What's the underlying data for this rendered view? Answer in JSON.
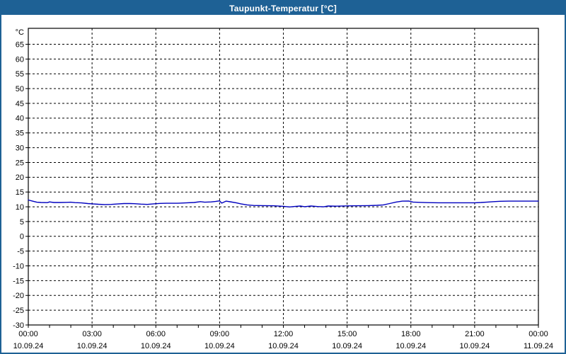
{
  "window": {
    "title": "Taupunkt-Temperatur [°C]"
  },
  "colors": {
    "title_bar": "#1e6195",
    "window_border": "#1e6195",
    "background": "#ffffff",
    "grid": "#000000",
    "axis": "#000000",
    "text": "#000000",
    "line": "#0000bf"
  },
  "chart_data": {
    "type": "line",
    "title": "Taupunkt-Temperatur [°C]",
    "ylabel": "°C",
    "xlabel": "",
    "grid": true,
    "legend": "none",
    "ylim": [
      -30,
      70.4
    ],
    "xlim_hours": [
      0,
      24
    ],
    "y_ticks": [
      65,
      60,
      55,
      50,
      45,
      40,
      35,
      30,
      25,
      20,
      15,
      10,
      5,
      0,
      -5,
      -10,
      -15,
      -20,
      -25,
      -30
    ],
    "x_gridline_hours": [
      3,
      6,
      9,
      12,
      15,
      18,
      21
    ],
    "x_minor_tick_hours_step": 1,
    "x_ticks": [
      {
        "hour": 0,
        "time": "00:00",
        "date": "10.09.24"
      },
      {
        "hour": 3,
        "time": "03:00",
        "date": "10.09.24"
      },
      {
        "hour": 6,
        "time": "06:00",
        "date": "10.09.24"
      },
      {
        "hour": 9,
        "time": "09:00",
        "date": "10.09.24"
      },
      {
        "hour": 12,
        "time": "12:00",
        "date": "10.09.24"
      },
      {
        "hour": 15,
        "time": "15:00",
        "date": "10.09.24"
      },
      {
        "hour": 18,
        "time": "18:00",
        "date": "10.09.24"
      },
      {
        "hour": 21,
        "time": "21:00",
        "date": "10.09.24"
      },
      {
        "hour": 24,
        "time": "00:00",
        "date": "11.09.24"
      }
    ],
    "series": [
      {
        "name": "Taupunkt-Temperatur",
        "color": "#0000bf",
        "points": [
          [
            0.0,
            12.3
          ],
          [
            0.2,
            11.9
          ],
          [
            0.4,
            11.55
          ],
          [
            0.6,
            11.45
          ],
          [
            0.9,
            11.4
          ],
          [
            1.0,
            11.65
          ],
          [
            1.2,
            11.45
          ],
          [
            1.5,
            11.45
          ],
          [
            1.8,
            11.5
          ],
          [
            2.0,
            11.55
          ],
          [
            2.2,
            11.4
          ],
          [
            2.5,
            11.3
          ],
          [
            2.8,
            11.1
          ],
          [
            3.0,
            11.0
          ],
          [
            3.3,
            10.85
          ],
          [
            3.6,
            10.75
          ],
          [
            3.9,
            10.8
          ],
          [
            4.2,
            10.95
          ],
          [
            4.5,
            11.1
          ],
          [
            4.8,
            11.1
          ],
          [
            5.0,
            11.05
          ],
          [
            5.3,
            10.9
          ],
          [
            5.6,
            10.8
          ],
          [
            5.9,
            11.0
          ],
          [
            6.2,
            11.15
          ],
          [
            6.5,
            11.2
          ],
          [
            7.0,
            11.2
          ],
          [
            7.4,
            11.3
          ],
          [
            7.8,
            11.45
          ],
          [
            8.1,
            11.75
          ],
          [
            8.3,
            11.55
          ],
          [
            8.6,
            11.65
          ],
          [
            8.8,
            11.8
          ],
          [
            9.0,
            12.0
          ],
          [
            9.1,
            11.25
          ],
          [
            9.3,
            11.9
          ],
          [
            9.5,
            11.7
          ],
          [
            9.8,
            11.3
          ],
          [
            10.0,
            11.0
          ],
          [
            10.3,
            10.65
          ],
          [
            10.6,
            10.45
          ],
          [
            11.0,
            10.4
          ],
          [
            11.5,
            10.35
          ],
          [
            12.0,
            10.15
          ],
          [
            12.3,
            9.95
          ],
          [
            12.5,
            10.1
          ],
          [
            12.8,
            10.25
          ],
          [
            13.0,
            10.05
          ],
          [
            13.3,
            10.25
          ],
          [
            13.6,
            10.1
          ],
          [
            13.9,
            10.0
          ],
          [
            14.1,
            10.25
          ],
          [
            14.5,
            10.2
          ],
          [
            15.0,
            10.3
          ],
          [
            15.5,
            10.35
          ],
          [
            16.0,
            10.4
          ],
          [
            16.4,
            10.5
          ],
          [
            16.7,
            10.65
          ],
          [
            17.0,
            11.1
          ],
          [
            17.3,
            11.6
          ],
          [
            17.6,
            11.9
          ],
          [
            17.9,
            11.95
          ],
          [
            18.1,
            11.6
          ],
          [
            18.4,
            11.5
          ],
          [
            18.8,
            11.4
          ],
          [
            19.3,
            11.35
          ],
          [
            20.0,
            11.35
          ],
          [
            20.7,
            11.35
          ],
          [
            21.0,
            11.35
          ],
          [
            21.3,
            11.45
          ],
          [
            21.6,
            11.6
          ],
          [
            21.9,
            11.75
          ],
          [
            22.2,
            11.85
          ],
          [
            22.6,
            11.9
          ],
          [
            23.0,
            11.9
          ],
          [
            23.5,
            11.9
          ],
          [
            24.0,
            11.9
          ]
        ]
      }
    ]
  }
}
